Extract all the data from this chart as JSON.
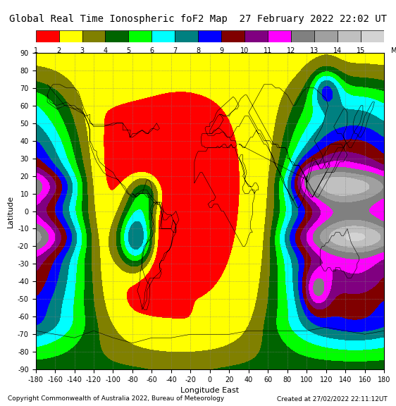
{
  "title": "Global Real Time Ionospheric foF2 Map  27 February 2022 22:02 UT",
  "xlabel": "Longitude East",
  "ylabel": "Latitude",
  "copyright": "Copyright Commonwealth of Australia 2022, Bureau of Meteorology",
  "created": "Created at 27/02/2022 22:11:12UT",
  "xlim": [
    -180,
    180
  ],
  "ylim": [
    -90,
    90
  ],
  "xticks": [
    -180,
    -160,
    -140,
    -120,
    -100,
    -80,
    -60,
    -40,
    -20,
    0,
    20,
    40,
    60,
    80,
    100,
    120,
    140,
    160,
    180
  ],
  "yticks": [
    -90,
    -80,
    -70,
    -60,
    -50,
    -40,
    -30,
    -20,
    -10,
    0,
    10,
    20,
    30,
    40,
    50,
    60,
    70,
    80,
    90
  ],
  "freq_levels": [
    1,
    2,
    3,
    4,
    5,
    6,
    7,
    8,
    9,
    10,
    11,
    12,
    13,
    14,
    15
  ],
  "colorbar_colors": [
    "#FF0000",
    "#FFFF00",
    "#808000",
    "#006400",
    "#00FF00",
    "#00FFFF",
    "#008080",
    "#0000FF",
    "#800000",
    "#800080",
    "#FF00FF",
    "#808080",
    "#A0A0A0",
    "#C0C0C0",
    "#D3D3D3"
  ],
  "map_bg_color": "#00CED1",
  "grid_color": "#808080",
  "title_fontsize": 10,
  "axis_fontsize": 8,
  "tick_fontsize": 7,
  "copyright_fontsize": 6.5
}
